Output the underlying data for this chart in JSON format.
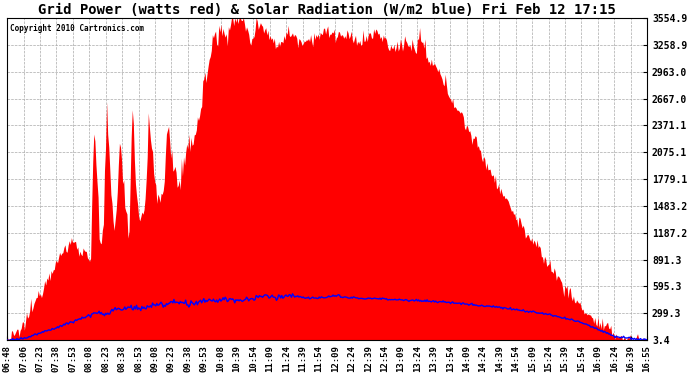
{
  "title": "Grid Power (watts red) & Solar Radiation (W/m2 blue) Fri Feb 12 17:15",
  "copyright_text": "Copyright 2010 Cartronics.com",
  "yticks": [
    3.4,
    299.3,
    595.3,
    891.3,
    1187.2,
    1483.2,
    1779.1,
    2075.1,
    2371.1,
    2667.0,
    2963.0,
    3258.9,
    3554.9
  ],
  "ymin": 0,
  "ymax": 3554.9,
  "bg_color": "#ffffff",
  "plot_bg_color": "#ffffff",
  "grid_color": "#aaaaaa",
  "red_fill_color": "#ff0000",
  "blue_line_color": "#0000ff",
  "title_fontsize": 10,
  "xlabel_fontsize": 6.5,
  "ylabel_fontsize": 7,
  "xtick_labels": [
    "06:48",
    "07:06",
    "07:23",
    "07:38",
    "07:53",
    "08:08",
    "08:23",
    "08:38",
    "08:53",
    "09:08",
    "09:23",
    "09:38",
    "09:53",
    "10:08",
    "10:39",
    "10:54",
    "11:09",
    "11:24",
    "11:39",
    "11:54",
    "12:09",
    "12:24",
    "12:39",
    "12:54",
    "13:09",
    "13:24",
    "13:39",
    "13:54",
    "14:09",
    "14:24",
    "14:39",
    "14:54",
    "15:09",
    "15:24",
    "15:39",
    "15:54",
    "16:09",
    "16:24",
    "16:39",
    "16:55"
  ]
}
